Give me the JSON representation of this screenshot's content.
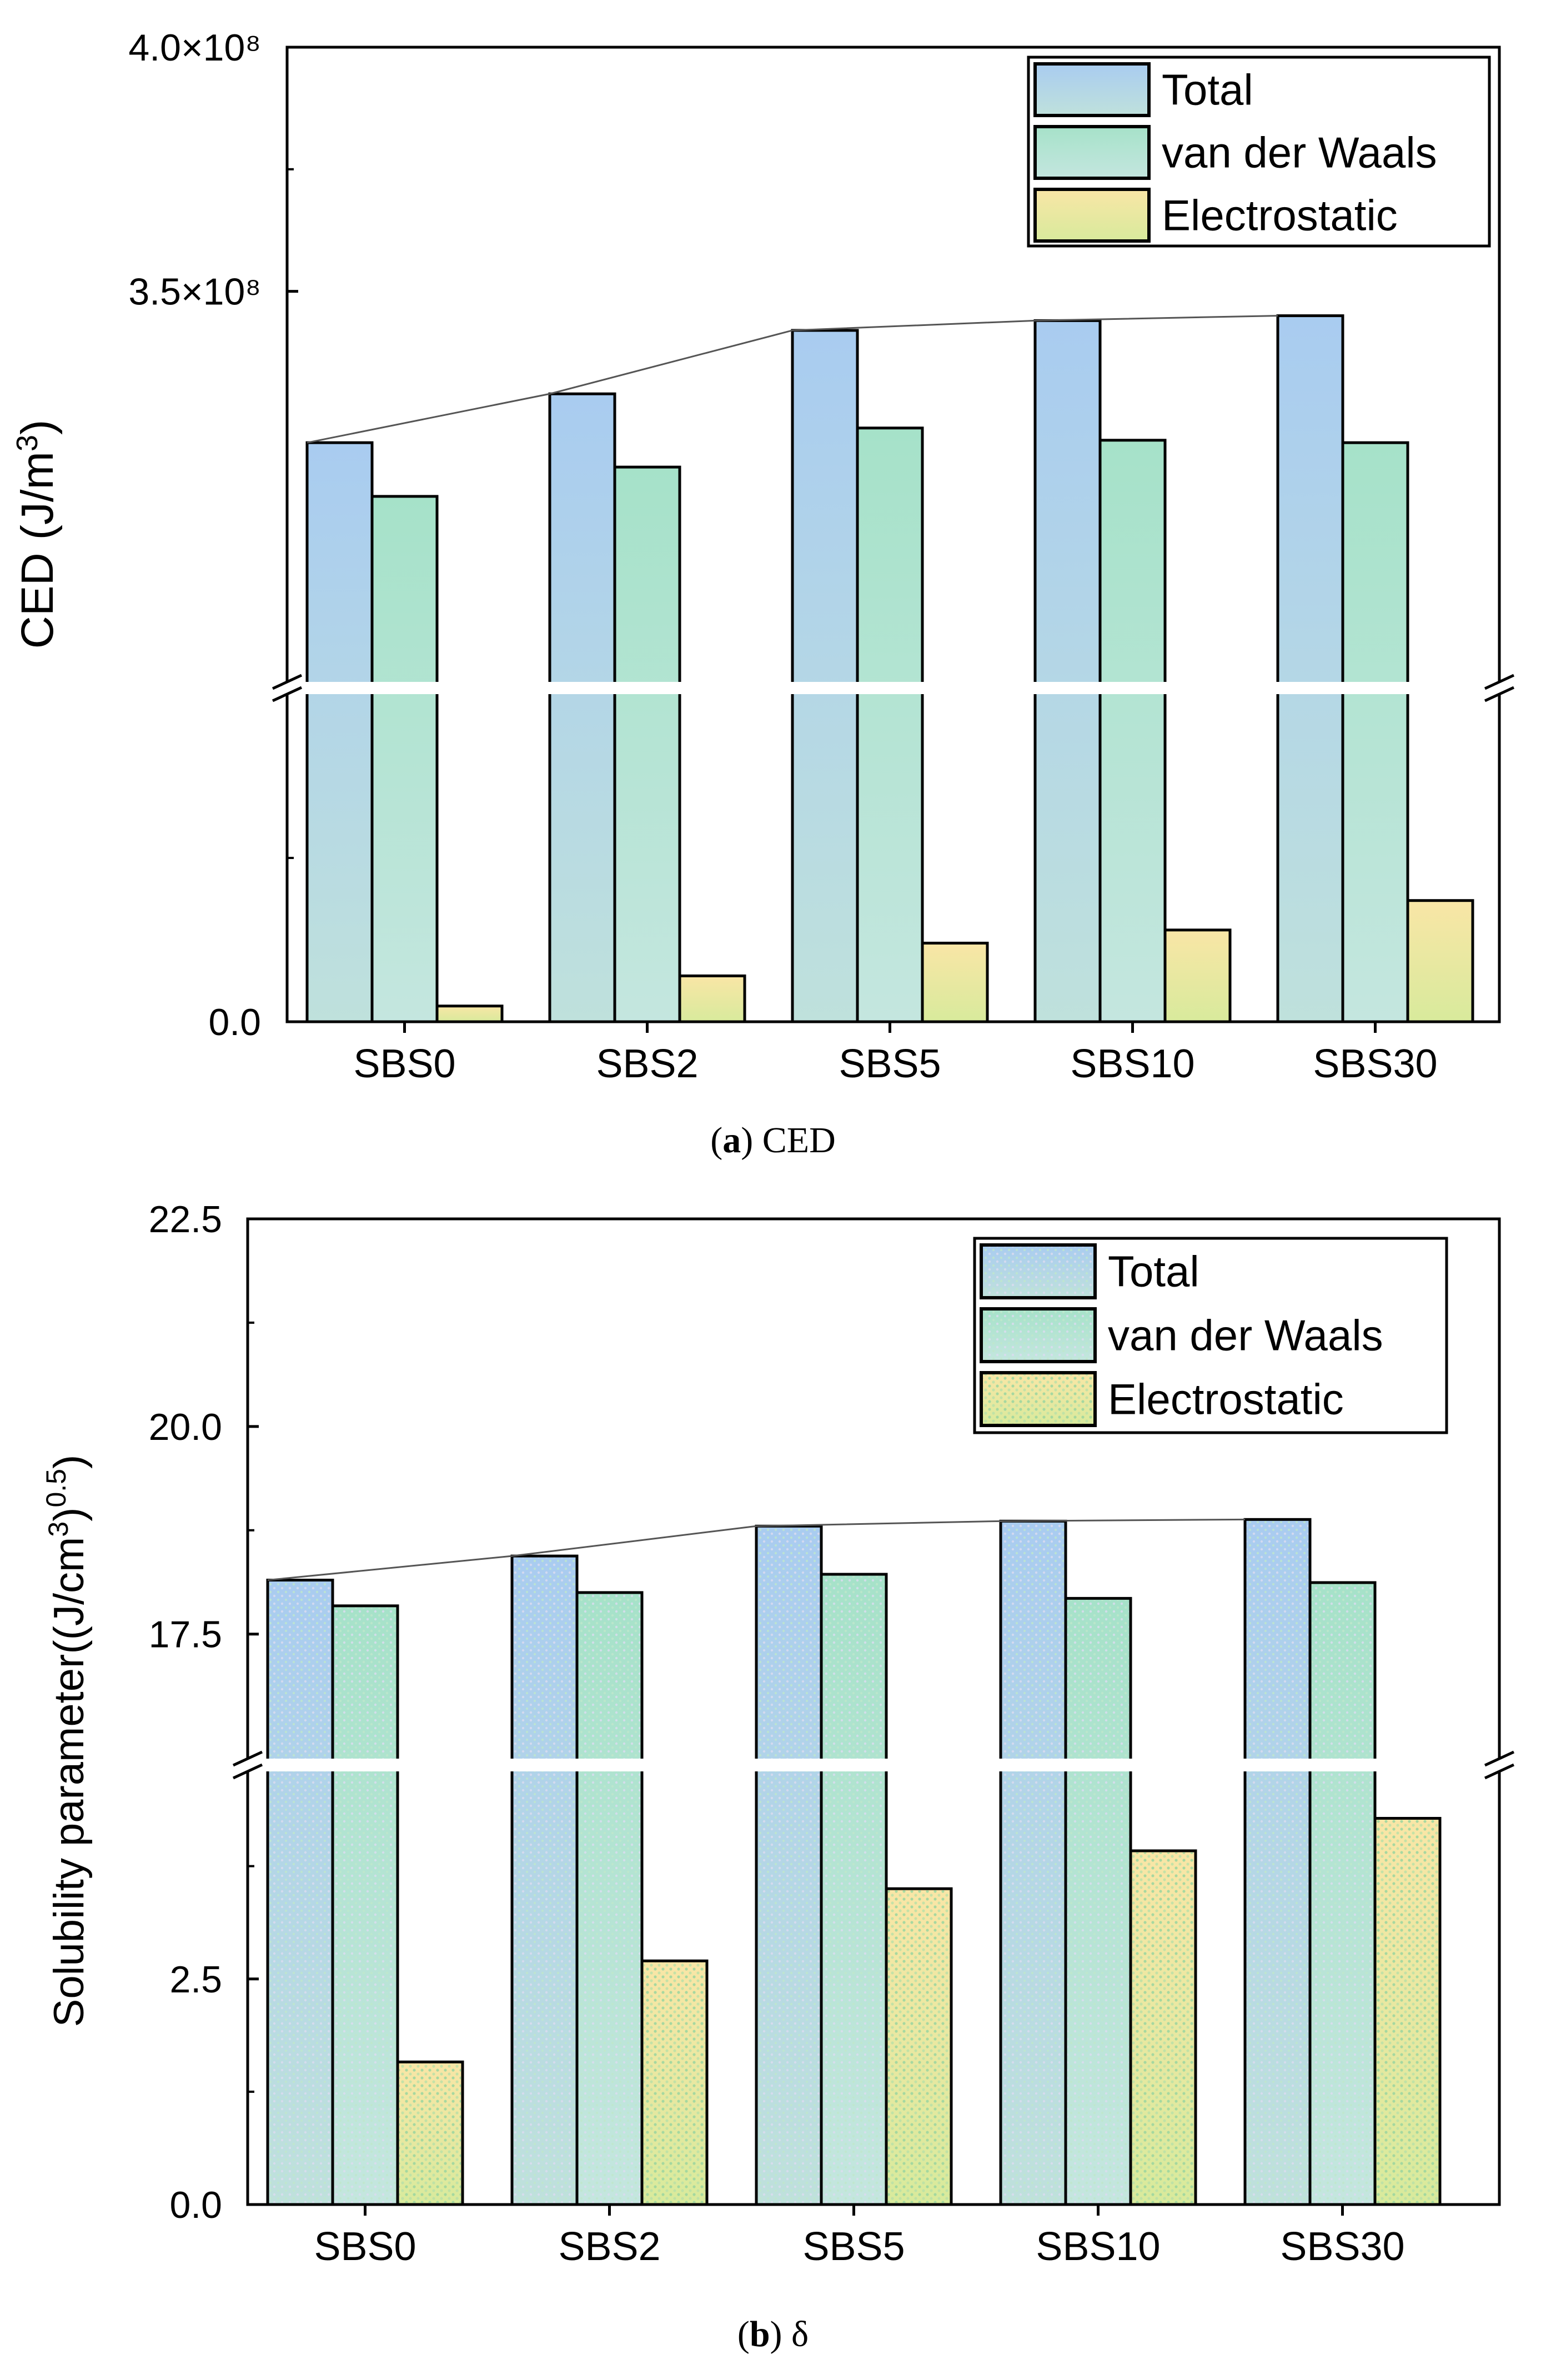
{
  "chart_data": [
    {
      "type": "bar",
      "categories": [
        "SBS0",
        "SBS2",
        "SBS5",
        "SBS10",
        "SBS30"
      ],
      "series": [
        {
          "name": "Total",
          "values": [
            319000000,
            329000000,
            342000000,
            344000000,
            345000000
          ]
        },
        {
          "name": "van der Waals",
          "values": [
            308000000,
            314000000,
            322000000,
            319500000,
            319000000
          ]
        },
        {
          "name": "Electrostatic",
          "values": [
            2400000,
            7000000,
            12000000,
            14000000,
            18500000
          ]
        }
      ],
      "title": "",
      "xlabel": "",
      "ylabel": "CED (J/m³)",
      "ylim": [
        0,
        400000000
      ],
      "axis_break": {
        "lower": [
          0,
          50000000
        ],
        "upper": [
          270000000,
          400000000
        ]
      },
      "yticks": [
        {
          "value": 0,
          "label": "0.0"
        },
        {
          "value": 350000000,
          "label": "3.5×10⁸"
        },
        {
          "value": 400000000,
          "label": "4.0×10⁸"
        }
      ],
      "trend_line": "Total",
      "legend": "top-right",
      "grid": false,
      "caption": {
        "letter": "a",
        "text": " CED"
      }
    },
    {
      "type": "bar",
      "categories": [
        "SBS0",
        "SBS2",
        "SBS5",
        "SBS10",
        "SBS30"
      ],
      "series": [
        {
          "name": "Total",
          "values": [
            18.15,
            18.44,
            18.8,
            18.86,
            18.88
          ]
        },
        {
          "name": "van der Waals",
          "values": [
            17.84,
            18.0,
            18.22,
            17.93,
            18.12
          ]
        },
        {
          "name": "Electrostatic",
          "values": [
            1.58,
            2.7,
            3.5,
            3.92,
            4.28
          ]
        }
      ],
      "title": "",
      "xlabel": "",
      "ylabel": "Solubility parameter((J/cm³)⁰·⁵)",
      "ylim": [
        0,
        22.5
      ],
      "axis_break": {
        "lower": [
          0,
          4.8
        ],
        "upper": [
          16,
          22.5
        ]
      },
      "yticks": [
        {
          "value": 0,
          "label": "0.0"
        },
        {
          "value": 2.5,
          "label": "2.5"
        },
        {
          "value": 17.5,
          "label": "17.5"
        },
        {
          "value": 20,
          "label": "20.0"
        },
        {
          "value": 22.5,
          "label": "22.5"
        }
      ],
      "trend_line": "Total",
      "legend": "top-right",
      "grid": false,
      "caption": {
        "letter": "b",
        "text": " δ"
      }
    }
  ],
  "colors": {
    "total": "#aecdee",
    "vdw": "#b0e3d2",
    "electrostatic": "#f7e3a2",
    "line": "#555555"
  }
}
